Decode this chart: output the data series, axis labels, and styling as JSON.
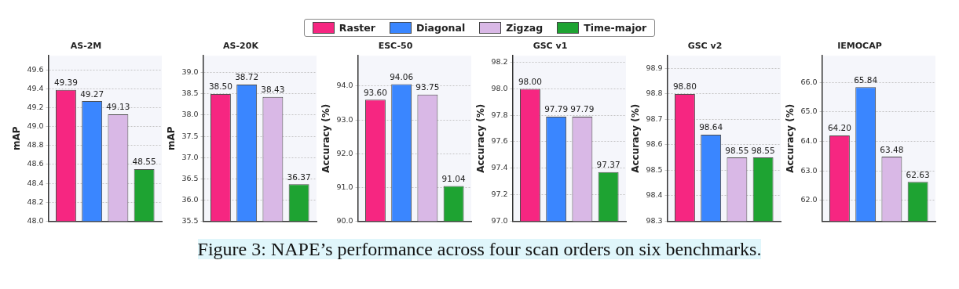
{
  "chart_data": [
    {
      "type": "bar",
      "title": "AS-2M",
      "ylabel": "mAP",
      "categories": [
        null
      ],
      "series": [
        {
          "name": "Raster",
          "color": "#f62681",
          "values": [
            49.39
          ],
          "value_labels": [
            "49.39"
          ]
        },
        {
          "name": "Diagonal",
          "color": "#3a86ff",
          "values": [
            49.27
          ],
          "value_labels": [
            "49.27"
          ]
        },
        {
          "name": "Zigzag",
          "color": "#d9b8e6",
          "values": [
            49.13
          ],
          "value_labels": [
            "49.13"
          ]
        },
        {
          "name": "Time-major",
          "color": "#1ea332",
          "values": [
            48.55
          ],
          "value_labels": [
            "48.55"
          ]
        }
      ],
      "ylim": [
        48.0,
        49.75
      ],
      "yticks": [
        {
          "value": 48.0,
          "label": "48.0"
        },
        {
          "value": 48.2,
          "label": "48.2"
        },
        {
          "value": 48.4,
          "label": "48.4"
        },
        {
          "value": 48.6,
          "label": "48.6"
        },
        {
          "value": 48.8,
          "label": "48.8"
        },
        {
          "value": 49.0,
          "label": "49.0"
        },
        {
          "value": 49.2,
          "label": "49.2"
        },
        {
          "value": 49.4,
          "label": "49.4"
        },
        {
          "value": 49.6,
          "label": "49.6"
        }
      ],
      "grid": "y",
      "legend": "top",
      "annotations": [
        "Figure 3: NAPE’s performance across four scan orders on six benchmarks."
      ]
    },
    {
      "type": "bar",
      "title": "AS-20K",
      "ylabel": "mAP",
      "categories": [
        null
      ],
      "series": [
        {
          "color": "#f62681",
          "values": [
            38.5
          ],
          "value_labels": [
            "38.50"
          ]
        },
        {
          "color": "#3a86ff",
          "values": [
            38.72
          ],
          "value_labels": [
            "38.72"
          ]
        },
        {
          "color": "#d9b8e6",
          "values": [
            38.43
          ],
          "value_labels": [
            "38.43"
          ]
        },
        {
          "color": "#1ea332",
          "values": [
            36.37
          ],
          "value_labels": [
            "36.37"
          ]
        }
      ],
      "ylim": [
        35.5,
        39.4
      ],
      "yticks": [
        {
          "value": 35.5,
          "label": "35.5"
        },
        {
          "value": 36.0,
          "label": "36.0"
        },
        {
          "value": 36.5,
          "label": "36.5"
        },
        {
          "value": 37.0,
          "label": "37.0"
        },
        {
          "value": 37.5,
          "label": "37.5"
        },
        {
          "value": 38.0,
          "label": "38.0"
        },
        {
          "value": 38.5,
          "label": "38.5"
        },
        {
          "value": 39.0,
          "label": "39.0"
        }
      ],
      "grid": "y"
    },
    {
      "type": "bar",
      "title": "ESC-50",
      "ylabel": "Accuracy (%)",
      "categories": [
        null
      ],
      "series": [
        {
          "color": "#f62681",
          "values": [
            93.6
          ],
          "value_labels": [
            "93.60"
          ]
        },
        {
          "color": "#3a86ff",
          "values": [
            94.06
          ],
          "value_labels": [
            "94.06"
          ]
        },
        {
          "color": "#d9b8e6",
          "values": [
            93.75
          ],
          "value_labels": [
            "93.75"
          ]
        },
        {
          "color": "#1ea332",
          "values": [
            91.04
          ],
          "value_labels": [
            "91.04"
          ]
        }
      ],
      "ylim": [
        90.0,
        94.9
      ],
      "yticks": [
        {
          "value": 90.0,
          "label": "90.0"
        },
        {
          "value": 91.0,
          "label": "91.0"
        },
        {
          "value": 92.0,
          "label": "92.0"
        },
        {
          "value": 93.0,
          "label": "93.0"
        },
        {
          "value": 94.0,
          "label": "94.0"
        }
      ],
      "grid": "y"
    },
    {
      "type": "bar",
      "title": "GSC v1",
      "ylabel": "Accuracy (%)",
      "categories": [
        null
      ],
      "series": [
        {
          "color": "#f62681",
          "values": [
            98.0
          ],
          "value_labels": [
            "98.00"
          ]
        },
        {
          "color": "#3a86ff",
          "values": [
            97.79
          ],
          "value_labels": [
            "97.79"
          ]
        },
        {
          "color": "#d9b8e6",
          "values": [
            97.79
          ],
          "value_labels": [
            "97.79"
          ]
        },
        {
          "color": "#1ea332",
          "values": [
            97.37
          ],
          "value_labels": [
            "97.37"
          ]
        }
      ],
      "ylim": [
        97.0,
        98.25
      ],
      "yticks": [
        {
          "value": 97.0,
          "label": "97.0"
        },
        {
          "value": 97.2,
          "label": "97.2"
        },
        {
          "value": 97.4,
          "label": "97.4"
        },
        {
          "value": 97.6,
          "label": "97.6"
        },
        {
          "value": 97.8,
          "label": "97.8"
        },
        {
          "value": 98.0,
          "label": "98.0"
        },
        {
          "value": 98.2,
          "label": "98.2"
        }
      ],
      "grid": "y"
    },
    {
      "type": "bar",
      "title": "GSC v2",
      "ylabel": "Accuracy (%)",
      "categories": [
        null
      ],
      "series": [
        {
          "color": "#f62681",
          "values": [
            98.8
          ],
          "value_labels": [
            "98.80"
          ]
        },
        {
          "color": "#3a86ff",
          "values": [
            98.64
          ],
          "value_labels": [
            "98.64"
          ]
        },
        {
          "color": "#d9b8e6",
          "values": [
            98.55
          ],
          "value_labels": [
            "98.55"
          ]
        },
        {
          "color": "#1ea332",
          "values": [
            98.55
          ],
          "value_labels": [
            "98.55"
          ]
        }
      ],
      "ylim": [
        98.3,
        98.95
      ],
      "yticks": [
        {
          "value": 98.3,
          "label": "98.3"
        },
        {
          "value": 98.4,
          "label": "98.4"
        },
        {
          "value": 98.5,
          "label": "98.5"
        },
        {
          "value": 98.6,
          "label": "98.6"
        },
        {
          "value": 98.7,
          "label": "98.7"
        },
        {
          "value": 98.8,
          "label": "98.8"
        },
        {
          "value": 98.9,
          "label": "98.9"
        }
      ],
      "grid": "y"
    },
    {
      "type": "bar",
      "title": "IEMOCAP",
      "ylabel": "Accuracy (%)",
      "categories": [
        null
      ],
      "series": [
        {
          "color": "#f62681",
          "values": [
            64.2
          ],
          "value_labels": [
            "64.20"
          ]
        },
        {
          "color": "#3a86ff",
          "values": [
            65.84
          ],
          "value_labels": [
            "65.84"
          ]
        },
        {
          "color": "#d9b8e6",
          "values": [
            63.48
          ],
          "value_labels": [
            "63.48"
          ]
        },
        {
          "color": "#1ea332",
          "values": [
            62.63
          ],
          "value_labels": [
            "62.63"
          ]
        }
      ],
      "ylim": [
        61.3,
        66.9
      ],
      "yticks": [
        {
          "value": 62.0,
          "label": "62.0"
        },
        {
          "value": 63.0,
          "label": "63.0"
        },
        {
          "value": 64.0,
          "label": "64.0"
        },
        {
          "value": 65.0,
          "label": "65.0"
        },
        {
          "value": 66.0,
          "label": "66.0"
        }
      ],
      "grid": "y"
    }
  ]
}
